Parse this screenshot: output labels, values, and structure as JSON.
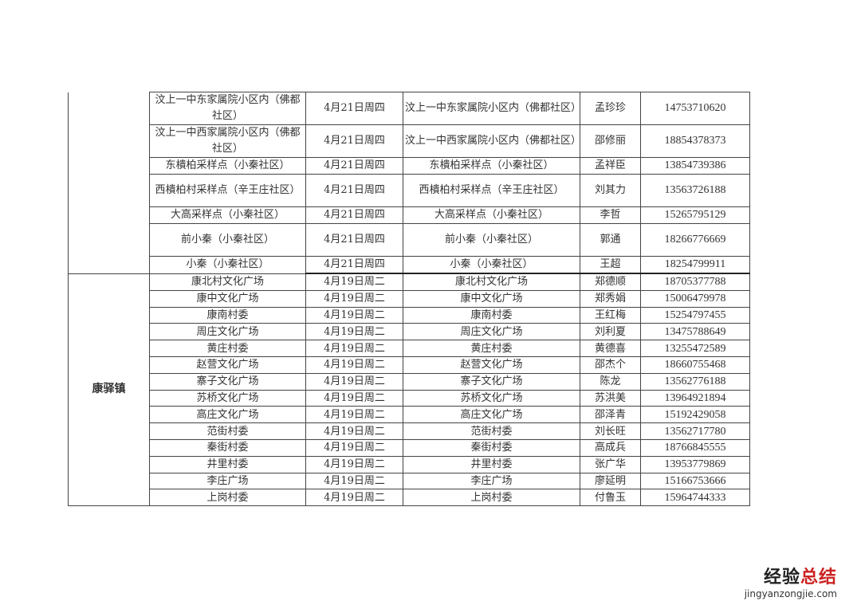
{
  "groups": [
    {
      "town": "",
      "rows": [
        {
          "place": "汶上一中东家属院小区内（佛都社区）",
          "date": "4月21日周四",
          "location": "汶上一中东家属院小区内（佛都社区）",
          "contact": "孟珍珍",
          "phone": "14753710620"
        },
        {
          "place": "汶上一中西家属院小区内（佛都社区）",
          "date": "4月21日周四",
          "location": "汶上一中西家属院小区内（佛都社区）",
          "contact": "邵修丽",
          "phone": "18854378373"
        },
        {
          "place": "东樻柏采样点（小秦社区）",
          "date": "4月21日周四",
          "location": "东樻柏采样点（小秦社区）",
          "contact": "孟祥臣",
          "phone": "13854739386"
        },
        {
          "place": "西樻柏村采样点（辛王庄社区）",
          "date": "4月21日周四",
          "location": "西樻柏村采样点（辛王庄社区）",
          "contact": "刘其力",
          "phone": "13563726188"
        },
        {
          "place": "大高采样点（小秦社区）",
          "date": "4月21日周四",
          "location": "大高采样点（小秦社区）",
          "contact": "李哲",
          "phone": "15265795129"
        },
        {
          "place": "前小秦（小秦社区）",
          "date": "4月21日周四",
          "location": "前小秦（小秦社区）",
          "contact": "郭通",
          "phone": "18266776669"
        },
        {
          "place": "小秦（小秦社区）",
          "date": "4月21日周四",
          "location": "小秦（小秦社区）",
          "contact": "王超",
          "phone": "18254799911"
        }
      ]
    },
    {
      "town": "康驿镇",
      "rows": [
        {
          "place": "康北村文化广场",
          "date": "4月19日周二",
          "location": "康北村文化广场",
          "contact": "郑德顺",
          "phone": "18705377788"
        },
        {
          "place": "康中文化广场",
          "date": "4月19日周二",
          "location": "康中文化广场",
          "contact": "郑秀娟",
          "phone": "15006479978"
        },
        {
          "place": "康南村委",
          "date": "4月19日周二",
          "location": "康南村委",
          "contact": "王红梅",
          "phone": "15254797455"
        },
        {
          "place": "周庄文化广场",
          "date": "4月19日周二",
          "location": "周庄文化广场",
          "contact": "刘利夏",
          "phone": "13475788649"
        },
        {
          "place": "黄庄村委",
          "date": "4月19日周二",
          "location": "黄庄村委",
          "contact": "黄德喜",
          "phone": "13255472589"
        },
        {
          "place": "赵营文化广场",
          "date": "4月19日周二",
          "location": "赵营文化广场",
          "contact": "邵杰个",
          "phone": "18660755468"
        },
        {
          "place": "寨子文化广场",
          "date": "4月19日周二",
          "location": "寨子文化广场",
          "contact": "陈龙",
          "phone": "13562776188"
        },
        {
          "place": "苏桥文化广场",
          "date": "4月19日周二",
          "location": "苏桥文化广场",
          "contact": "苏洪美",
          "phone": "13964921894"
        },
        {
          "place": "高庄文化广场",
          "date": "4月19日周二",
          "location": "高庄文化广场",
          "contact": "邵泽青",
          "phone": "15192429058"
        },
        {
          "place": "范街村委",
          "date": "4月19日周二",
          "location": "范街村委",
          "contact": "刘长旺",
          "phone": "13562717780"
        },
        {
          "place": "秦街村委",
          "date": "4月19日周二",
          "location": "秦街村委",
          "contact": "高成兵",
          "phone": "18766845555"
        },
        {
          "place": "井里村委",
          "date": "4月19日周二",
          "location": "井里村委",
          "contact": "张广华",
          "phone": "13953779869"
        },
        {
          "place": "李庄广场",
          "date": "4月19日周二",
          "location": "李庄广场",
          "contact": "廖延明",
          "phone": "15166753666"
        },
        {
          "place": "上岗村委",
          "date": "4月19日周二",
          "location": "上岗村委",
          "contact": "付鲁玉",
          "phone": "15964744333"
        }
      ]
    }
  ],
  "watermark": {
    "brand_a": "经验",
    "brand_b": "总结",
    "url": "jingyanzongjie.com"
  }
}
